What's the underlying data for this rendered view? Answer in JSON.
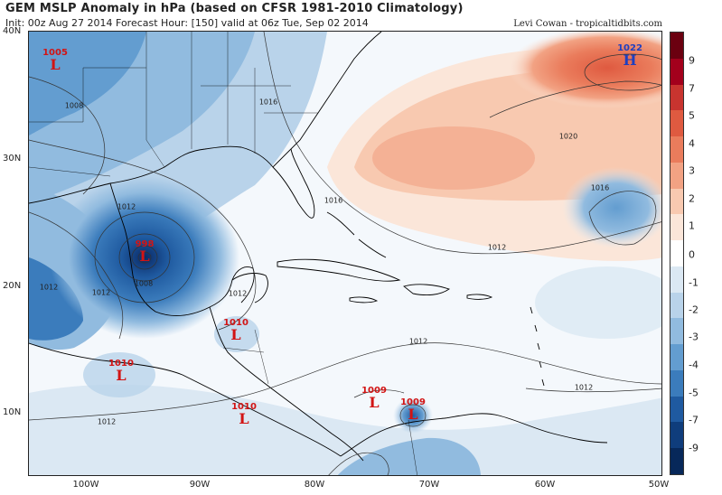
{
  "header": {
    "title": "GEM MSLP Anomaly in hPa (based on CFSR 1981-2010 Climatology)",
    "subtitle": "Init: 00z Aug 27 2014 Forecast Hour: [150] valid at 06z Tue, Sep 02 2014",
    "credit": "Levi Cowan - tropicaltidbits.com"
  },
  "axes": {
    "latitude_labels": [
      "40N",
      "30N",
      "20N",
      "10N"
    ],
    "longitude_labels": [
      "100W",
      "90W",
      "80W",
      "70W",
      "60W",
      "50W"
    ]
  },
  "colorbar": {
    "labels": [
      "9",
      "7",
      "5",
      "4",
      "3",
      "2",
      "1",
      "0",
      "-1",
      "-2",
      "-3",
      "-4",
      "-5",
      "-7",
      "-9"
    ],
    "colors": [
      "#6b0010",
      "#a3001c",
      "#c8342f",
      "#df5a40",
      "#ea7c5c",
      "#f2a283",
      "#f8c9b0",
      "#fbe6d9",
      "#ffffff",
      "#dbe8f3",
      "#b9d3ea",
      "#91bbdf",
      "#639dd0",
      "#3b7cbc",
      "#1f5aa0",
      "#0f3d7c",
      "#07285a"
    ]
  },
  "pressure_centers": [
    {
      "type": "L",
      "value": "1005"
    },
    {
      "type": "L",
      "value": "998"
    },
    {
      "type": "L",
      "value": "1010"
    },
    {
      "type": "L",
      "value": "1010"
    },
    {
      "type": "L",
      "value": "1010"
    },
    {
      "type": "L",
      "value": "1009"
    },
    {
      "type": "L",
      "value": "1009"
    },
    {
      "type": "H",
      "value": "1022"
    }
  ],
  "contour_labels": [
    "1008",
    "1016",
    "1020",
    "1012",
    "1016",
    "1016",
    "1012",
    "1012",
    "1008",
    "1012",
    "1012",
    "1012",
    "1012"
  ],
  "colors": {
    "low_marker": "#d21414",
    "high_marker": "#1f3fbf",
    "land_outline": "#000000",
    "contour_line": "#333333"
  }
}
